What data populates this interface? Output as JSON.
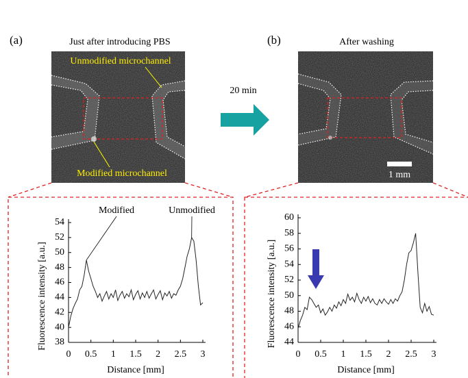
{
  "figure": {
    "panel_a": "(a)",
    "title_a": "Just after introducing PBS",
    "unmodified_label": "Unmodified microchannel",
    "modified_label": "Modified microchannel",
    "panel_b": "(b)",
    "title_b": "After washing",
    "time": "20 min",
    "scale_bar": "1 mm"
  },
  "chart_data": [
    {
      "type": "line",
      "xlabel": "Distance [mm]",
      "ylabel": "Fluorescence intensity [a.u.]",
      "annotations": [
        "Modified",
        "Unmodified"
      ],
      "color": "#222222",
      "x": [
        0,
        0.05,
        0.1,
        0.15,
        0.2,
        0.25,
        0.3,
        0.35,
        0.4,
        0.45,
        0.5,
        0.55,
        0.6,
        0.65,
        0.7,
        0.75,
        0.8,
        0.85,
        0.9,
        0.95,
        1,
        1.05,
        1.1,
        1.15,
        1.2,
        1.25,
        1.3,
        1.35,
        1.4,
        1.45,
        1.5,
        1.55,
        1.6,
        1.65,
        1.7,
        1.75,
        1.8,
        1.85,
        1.9,
        1.95,
        2,
        2.05,
        2.1,
        2.15,
        2.2,
        2.25,
        2.3,
        2.35,
        2.4,
        2.45,
        2.5,
        2.55,
        2.6,
        2.65,
        2.7,
        2.75,
        2.8,
        2.85,
        2.9,
        2.95,
        3
      ],
      "values": [
        40.0,
        41.5,
        42.5,
        43.2,
        43.8,
        45.0,
        45.5,
        47.0,
        49.0,
        47.5,
        46.5,
        45.5,
        44.8,
        44.0,
        44.5,
        43.5,
        44.2,
        44.8,
        43.8,
        44.5,
        44.0,
        45.0,
        43.6,
        44.3,
        44.8,
        43.9,
        44.5,
        44.1,
        45.0,
        43.7,
        44.4,
        44.9,
        43.8,
        44.6,
        44.0,
        44.8,
        43.9,
        44.5,
        45.0,
        43.8,
        44.4,
        44.9,
        43.7,
        44.6,
        44.2,
        44.8,
        43.9,
        44.5,
        44.3,
        45.0,
        45.5,
        46.5,
        48.0,
        49.5,
        50.5,
        52.0,
        51.5,
        49.0,
        45.5,
        43.0,
        43.3
      ],
      "xlim": [
        0,
        3
      ],
      "xticks": [
        0,
        0.5,
        1,
        1.5,
        2,
        2.5,
        3
      ],
      "ylim": [
        38,
        54
      ],
      "yticks": [
        38,
        40,
        42,
        44,
        46,
        48,
        50,
        52,
        54
      ]
    },
    {
      "type": "line",
      "xlabel": "Distance [mm]",
      "ylabel": "Fluorescence intensity [a.u.]",
      "color": "#222222",
      "x": [
        0,
        0.05,
        0.1,
        0.15,
        0.2,
        0.25,
        0.3,
        0.35,
        0.4,
        0.45,
        0.5,
        0.55,
        0.6,
        0.65,
        0.7,
        0.75,
        0.8,
        0.85,
        0.9,
        0.95,
        1,
        1.05,
        1.1,
        1.15,
        1.2,
        1.25,
        1.3,
        1.35,
        1.4,
        1.45,
        1.5,
        1.55,
        1.6,
        1.65,
        1.7,
        1.75,
        1.8,
        1.85,
        1.9,
        1.95,
        2,
        2.05,
        2.1,
        2.15,
        2.2,
        2.25,
        2.3,
        2.35,
        2.4,
        2.45,
        2.5,
        2.55,
        2.6,
        2.65,
        2.7,
        2.75,
        2.8,
        2.85,
        2.9,
        2.95,
        3
      ],
      "values": [
        45.8,
        46.8,
        47.5,
        48.5,
        48.2,
        49.8,
        49.5,
        49.0,
        48.5,
        48.8,
        47.8,
        48.3,
        47.5,
        47.9,
        48.5,
        48.0,
        48.8,
        48.4,
        49.2,
        48.7,
        49.5,
        49.0,
        50.2,
        49.4,
        49.8,
        49.2,
        50.3,
        49.5,
        49.0,
        49.8,
        49.3,
        49.9,
        49.1,
        49.6,
        49.0,
        48.8,
        49.5,
        49.0,
        49.6,
        49.2,
        48.9,
        49.5,
        49.0,
        49.6,
        49.3,
        50.0,
        50.5,
        52.0,
        54.0,
        55.5,
        55.8,
        56.8,
        58.0,
        53.0,
        48.5,
        47.8,
        49.0,
        48.0,
        48.6,
        47.6,
        47.5
      ],
      "xlim": [
        0,
        3
      ],
      "xticks": [
        0,
        0.5,
        1,
        1.5,
        2,
        2.5,
        3
      ],
      "ylim": [
        44,
        60
      ],
      "yticks": [
        44,
        46,
        48,
        50,
        52,
        54,
        56,
        58,
        60
      ]
    }
  ]
}
